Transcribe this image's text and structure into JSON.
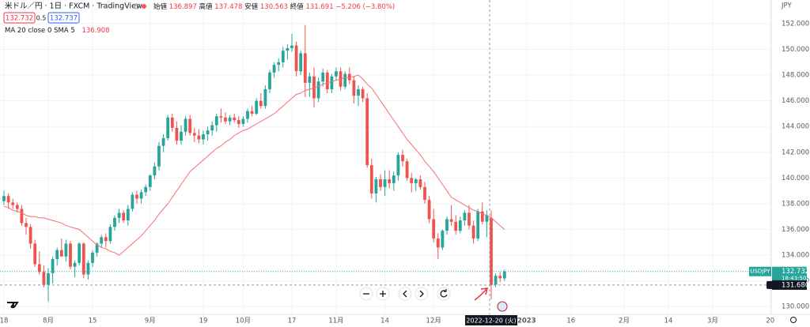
{
  "chart_data": {
    "type": "candlestick",
    "title": "米ドル／円 · 1日 · FXCM · TradingView",
    "ohlc_labels": [
      "始値",
      "高値",
      "安値",
      "終値"
    ],
    "change": "−5.206 (−3.80%)",
    "bid": "132.732",
    "spread": "0.5",
    "ask": "132.737",
    "currency": "JPY",
    "symbol": "USDJPY",
    "last_price": 132.732,
    "countdown": "18:43:50",
    "crosshair_price": {
      "value": 131.68,
      "label": "131.680"
    },
    "up_color": "#26a69a",
    "down_color": "#ef5350",
    "ylim": [
      129.4,
      153.84
    ],
    "yticks": [
      {
        "value": 130,
        "label": "130.000"
      },
      {
        "value": 132,
        "label": "132.000"
      },
      {
        "value": 134,
        "label": "134.000"
      },
      {
        "value": 136,
        "label": "136.000"
      },
      {
        "value": 138,
        "label": "138.000"
      },
      {
        "value": 140,
        "label": "140.000"
      },
      {
        "value": 142,
        "label": "142.000"
      },
      {
        "value": 144,
        "label": "144.000"
      },
      {
        "value": 146,
        "label": "146.000"
      },
      {
        "value": 148,
        "label": "148.000"
      },
      {
        "value": 150,
        "label": "150.000"
      },
      {
        "value": 152,
        "label": "152.000"
      }
    ],
    "grid": true,
    "categories": [
      "18",
      null,
      null,
      null,
      null,
      null,
      null,
      null,
      null,
      null,
      "8月",
      null,
      null,
      null,
      null,
      null,
      null,
      null,
      null,
      null,
      "15",
      null,
      null,
      null,
      null,
      null,
      null,
      null,
      null,
      null,
      null,
      null,
      null,
      "9月",
      null,
      null,
      null,
      null,
      null,
      null,
      null,
      null,
      null,
      null,
      null,
      "19",
      null,
      null,
      null,
      null,
      null,
      null,
      null,
      null,
      "10月",
      null,
      null,
      null,
      null,
      null,
      null,
      null,
      null,
      null,
      null,
      "17",
      null,
      null,
      null,
      null,
      null,
      null,
      null,
      null,
      null,
      "11月",
      null,
      null,
      null,
      null,
      null,
      null,
      null,
      null,
      null,
      null,
      "14",
      null,
      null,
      null,
      null,
      null,
      null,
      null,
      null,
      null,
      null,
      "12月",
      null,
      null,
      null,
      null,
      null,
      null,
      null,
      null,
      null,
      null,
      null,
      null,
      "2022-12-20 (火)",
      null,
      null,
      null,
      null,
      null,
      null,
      null,
      "2023",
      null,
      null,
      null,
      null,
      null,
      null,
      null,
      null,
      null,
      "16",
      null,
      null,
      null,
      null,
      null,
      null,
      null,
      null,
      null,
      null,
      null,
      "2月",
      null,
      null,
      null,
      null,
      null,
      null,
      null,
      null,
      null,
      "14",
      null,
      null,
      null,
      null,
      null,
      null,
      null,
      null,
      null,
      "3月",
      null,
      null,
      null,
      null,
      null,
      null,
      null,
      null,
      null,
      null,
      null,
      null,
      "20"
    ],
    "open": [
      138.2,
      138.6,
      138.1,
      137.9,
      137.6,
      136.5,
      136.2,
      134.9,
      133.3,
      132.7,
      131.7,
      132.6,
      133.7,
      134.4,
      133.9,
      134.9,
      133.1,
      133.4,
      134.9,
      132.5,
      133.4,
      134.2,
      134.9,
      135.4,
      135.1,
      136.2,
      136.9,
      137.3,
      136.7,
      137.6,
      138.7,
      138.4,
      138.9,
      139.3,
      140.2,
      140.9,
      142.5,
      143.1,
      144.7,
      143.9,
      142.9,
      143.6,
      144.6,
      143.5,
      143.3,
      143.0,
      143.4,
      143.7,
      144.1,
      144.8,
      144.7,
      144.4,
      144.7,
      144.5,
      144.2,
      144.6,
      145.2,
      145.0,
      146.0,
      145.6,
      146.9,
      148.2,
      148.8,
      149.0,
      149.9,
      150.1,
      150.3,
      148.3,
      149.7,
      147.4,
      147.9,
      146.2,
      147.5,
      148.2,
      146.9,
      147.9,
      148.3,
      147.1,
      148.1,
      147.6,
      146.4,
      146.9,
      146.2,
      141.0,
      138.8,
      139.9,
      139.3,
      139.9,
      139.6,
      140.2,
      141.8,
      141.3,
      140.0,
      139.6,
      139.9,
      139.3,
      138.3,
      136.8,
      135.3,
      134.6,
      135.9,
      136.8,
      136.6,
      135.9,
      136.7,
      137.3,
      136.3,
      135.3,
      137.4,
      136.6,
      136.897,
      131.7,
      132.4,
      132.2,
      null,
      null,
      null,
      null,
      null,
      null,
      null,
      null,
      null,
      null,
      null,
      null,
      null,
      null,
      null,
      null,
      null,
      null,
      null,
      null,
      null,
      null,
      null,
      null,
      null,
      null,
      null,
      null,
      null,
      null,
      null,
      null,
      null,
      null,
      null,
      null,
      null,
      null,
      null,
      null,
      null,
      null,
      null,
      null,
      null,
      null,
      null,
      null,
      null,
      null,
      null,
      null,
      null,
      null,
      null,
      null,
      null,
      null,
      null,
      null
    ],
    "high": [
      139.0,
      138.8,
      138.4,
      138.1,
      137.9,
      136.9,
      136.4,
      135.2,
      134.3,
      133.2,
      133.0,
      133.9,
      134.6,
      135.3,
      135.2,
      135.1,
      133.6,
      135.0,
      135.0,
      133.6,
      134.4,
      135.0,
      135.6,
      135.7,
      136.4,
      137.1,
      137.6,
      137.5,
      137.9,
      138.9,
      139.0,
      139.1,
      139.5,
      140.3,
      141.2,
      142.8,
      143.4,
      144.9,
      145.0,
      144.4,
      144.1,
      144.8,
      144.9,
      143.9,
      143.8,
      143.7,
      144.0,
      144.4,
      145.0,
      145.4,
      145.1,
      144.9,
      145.0,
      144.8,
      144.8,
      145.4,
      145.6,
      146.2,
      146.6,
      147.2,
      148.4,
      149.0,
      149.3,
      150.2,
      150.4,
      151.2,
      150.6,
      149.9,
      151.9,
      148.2,
      148.6,
      147.8,
      148.5,
      148.4,
      148.1,
      148.6,
      148.6,
      148.3,
      148.6,
      147.9,
      147.2,
      147.1,
      146.6,
      141.5,
      140.1,
      140.3,
      140.6,
      140.6,
      140.5,
      142.0,
      142.2,
      141.5,
      140.4,
      140.0,
      140.2,
      139.7,
      138.6,
      137.6,
      135.7,
      136.0,
      137.0,
      137.9,
      137.1,
      137.0,
      137.5,
      137.9,
      136.7,
      137.6,
      138.1,
      137.5,
      137.478,
      132.6,
      132.7,
      132.9,
      null,
      null,
      null,
      null,
      null,
      null,
      null,
      null,
      null,
      null,
      null,
      null,
      null,
      null,
      null,
      null,
      null,
      null,
      null,
      null,
      null,
      null,
      null,
      null,
      null,
      null,
      null,
      null,
      null,
      null,
      null,
      null,
      null,
      null,
      null,
      null,
      null,
      null,
      null,
      null,
      null,
      null,
      null,
      null,
      null,
      null,
      null,
      null,
      null,
      null,
      null,
      null,
      null,
      null,
      null,
      null,
      null,
      null,
      null,
      null
    ],
    "low": [
      137.9,
      137.6,
      137.6,
      137.3,
      136.3,
      135.6,
      134.5,
      133.1,
      132.5,
      131.5,
      130.4,
      131.8,
      133.2,
      133.9,
      133.5,
      132.9,
      132.3,
      133.2,
      132.2,
      132.1,
      133.1,
      133.9,
      134.6,
      134.6,
      134.9,
      135.9,
      136.5,
      136.5,
      136.3,
      137.4,
      138.0,
      138.0,
      138.6,
      139.0,
      139.9,
      140.6,
      142.0,
      142.9,
      143.6,
      142.6,
      142.6,
      143.3,
      143.3,
      142.8,
      142.7,
      142.6,
      142.9,
      143.3,
      143.6,
      144.3,
      144.2,
      144.1,
      144.3,
      143.9,
      144.0,
      144.3,
      144.8,
      144.9,
      145.4,
      145.4,
      146.6,
      147.8,
      148.3,
      148.6,
      149.2,
      149.8,
      147.9,
      148.0,
      146.3,
      146.3,
      145.5,
      145.9,
      147.1,
      146.6,
      146.6,
      147.6,
      146.8,
      146.9,
      147.3,
      145.8,
      145.6,
      145.9,
      140.8,
      138.4,
      138.1,
      139.0,
      138.6,
      139.2,
      139.0,
      139.8,
      140.9,
      139.8,
      138.9,
      139.0,
      139.1,
      138.0,
      136.5,
      135.0,
      133.7,
      134.4,
      135.6,
      136.3,
      135.6,
      135.7,
      136.3,
      136.0,
      134.9,
      135.1,
      136.4,
      135.4,
      130.563,
      131.5,
      131.9,
      132.0,
      null,
      null,
      null,
      null,
      null,
      null,
      null,
      null,
      null,
      null,
      null,
      null,
      null,
      null,
      null,
      null,
      null,
      null,
      null,
      null,
      null,
      null,
      null,
      null,
      null,
      null,
      null,
      null,
      null,
      null,
      null,
      null,
      null,
      null,
      null,
      null,
      null,
      null,
      null,
      null,
      null,
      null,
      null,
      null,
      null,
      null,
      null,
      null,
      null,
      null,
      null,
      null,
      null,
      null,
      null,
      null,
      null,
      null,
      null,
      null
    ],
    "close": [
      138.6,
      138.1,
      137.9,
      137.6,
      136.5,
      136.2,
      134.9,
      133.3,
      132.7,
      131.7,
      132.6,
      133.7,
      134.4,
      133.9,
      134.9,
      133.1,
      133.4,
      134.9,
      132.5,
      133.4,
      134.2,
      134.9,
      135.4,
      135.1,
      136.2,
      136.9,
      137.3,
      136.7,
      137.6,
      138.7,
      138.4,
      138.9,
      139.3,
      140.2,
      140.9,
      142.5,
      143.1,
      144.7,
      143.9,
      142.9,
      143.6,
      144.6,
      143.5,
      143.3,
      143.0,
      143.4,
      143.7,
      144.1,
      144.8,
      144.7,
      144.4,
      144.7,
      144.5,
      144.2,
      144.6,
      145.2,
      145.0,
      146.0,
      145.6,
      146.9,
      148.2,
      148.8,
      149.0,
      149.9,
      150.1,
      150.3,
      148.3,
      149.7,
      147.4,
      147.9,
      146.2,
      147.5,
      148.2,
      146.9,
      147.9,
      148.3,
      147.1,
      148.1,
      147.6,
      146.4,
      146.9,
      146.2,
      141.0,
      138.8,
      139.9,
      139.3,
      139.9,
      139.6,
      140.2,
      141.8,
      141.3,
      140.0,
      139.6,
      139.9,
      139.3,
      138.3,
      136.8,
      135.3,
      134.6,
      135.9,
      136.8,
      136.6,
      135.9,
      136.7,
      137.3,
      136.3,
      135.3,
      137.4,
      136.6,
      137.1,
      131.691,
      132.4,
      132.2,
      132.732,
      null,
      null,
      null,
      null,
      null,
      null,
      null,
      null,
      null,
      null,
      null,
      null,
      null,
      null,
      null,
      null,
      null,
      null,
      null,
      null,
      null,
      null,
      null,
      null,
      null,
      null,
      null,
      null,
      null,
      null,
      null,
      null,
      null,
      null,
      null,
      null,
      null,
      null,
      null,
      null,
      null,
      null,
      null,
      null,
      null,
      null,
      null,
      null,
      null,
      null,
      null,
      null,
      null,
      null,
      null,
      null,
      null,
      null,
      null,
      null
    ],
    "ma": {
      "name": "MA 20 close 0 SMA 5",
      "color": "#f56d72",
      "values": [
        137.8,
        137.7,
        137.5,
        137.4,
        137.3,
        137.1,
        137.0,
        137.0,
        136.9,
        136.9,
        136.8,
        136.7,
        136.6,
        136.5,
        136.3,
        136.2,
        136.1,
        136.0,
        135.7,
        135.4,
        135.1,
        134.8,
        134.6,
        134.5,
        134.3,
        134.2,
        134.0,
        134.3,
        134.6,
        134.9,
        135.2,
        135.5,
        135.9,
        136.3,
        136.7,
        137.2,
        137.6,
        138.0,
        138.5,
        139.0,
        139.5,
        140.0,
        140.5,
        140.8,
        141.1,
        141.4,
        141.7,
        142.0,
        142.3,
        142.5,
        142.8,
        143.0,
        143.3,
        143.5,
        143.7,
        143.8,
        144.0,
        144.2,
        144.4,
        144.6,
        144.8,
        145.0,
        145.3,
        145.6,
        145.9,
        146.2,
        146.5,
        146.6,
        146.8,
        146.9,
        147.0,
        147.1,
        147.3,
        147.4,
        147.5,
        147.6,
        147.7,
        147.8,
        147.8,
        147.9,
        148.0,
        147.7,
        147.3,
        147.0,
        146.5,
        146.0,
        145.5,
        145.0,
        144.5,
        144.0,
        143.5,
        143.0,
        142.6,
        142.2,
        141.8,
        141.3,
        140.9,
        140.5,
        140.0,
        139.5,
        139.0,
        138.5,
        138.3,
        138.1,
        137.9,
        137.7,
        137.5,
        137.4,
        137.2,
        137.1,
        136.908,
        136.6,
        136.3,
        136.0,
        null,
        null,
        null,
        null,
        null,
        null,
        null,
        null,
        null,
        null,
        null,
        null,
        null,
        null,
        null,
        null,
        null,
        null,
        null,
        null,
        null,
        null,
        null,
        null,
        null,
        null,
        null,
        null,
        null,
        null,
        null,
        null,
        null,
        null,
        null,
        null,
        null,
        null,
        null,
        null,
        null,
        null,
        null,
        null,
        null,
        null,
        null,
        null,
        null,
        null,
        null,
        null,
        null,
        null,
        null,
        null,
        null,
        null,
        null,
        null
      ]
    }
  }
}
